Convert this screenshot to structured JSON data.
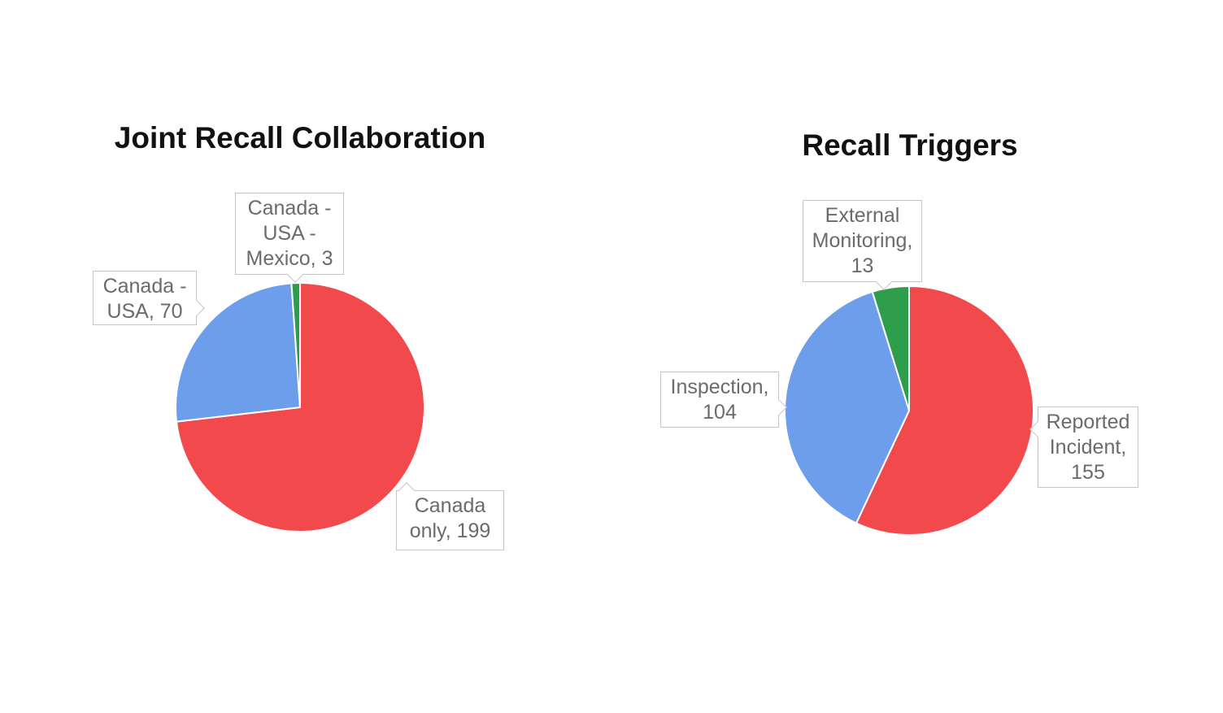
{
  "page": {
    "background": "#ffffff"
  },
  "chart_data": [
    {
      "type": "pie",
      "title": "Joint Recall Collaboration",
      "labels": [
        "Canada only",
        "Canada - USA",
        "Canada - USA - Mexico"
      ],
      "values": [
        199,
        70,
        3
      ],
      "total": 272,
      "colors": [
        "#f1494c",
        "#6d9eeb",
        "#2e9e4d"
      ],
      "slice_border_color": "#ffffff",
      "start_angle_deg": 0,
      "direction": "clockwise",
      "legend": "none",
      "callouts": [
        {
          "name": "canada-usa-mexico",
          "lines": [
            "Canada -",
            "USA -",
            "Mexico, 3"
          ]
        },
        {
          "name": "canada-usa",
          "lines": [
            "Canada -",
            "USA, 70"
          ]
        },
        {
          "name": "canada-only",
          "lines": [
            "Canada",
            "only, 199"
          ]
        }
      ]
    },
    {
      "type": "pie",
      "title": "Recall Triggers",
      "labels": [
        "Reported Incident",
        "Inspection",
        "External Monitoring"
      ],
      "values": [
        155,
        104,
        13
      ],
      "total": 272,
      "colors": [
        "#f1494c",
        "#6d9eeb",
        "#2e9e4d"
      ],
      "slice_border_color": "#ffffff",
      "start_angle_deg": 0,
      "direction": "clockwise",
      "legend": "none",
      "callouts": [
        {
          "name": "external-monitoring",
          "lines": [
            "External",
            "Monitoring,",
            "13"
          ]
        },
        {
          "name": "inspection",
          "lines": [
            "Inspection,",
            "104"
          ]
        },
        {
          "name": "reported-incident",
          "lines": [
            "Reported",
            "Incident,",
            "155"
          ]
        }
      ]
    }
  ]
}
